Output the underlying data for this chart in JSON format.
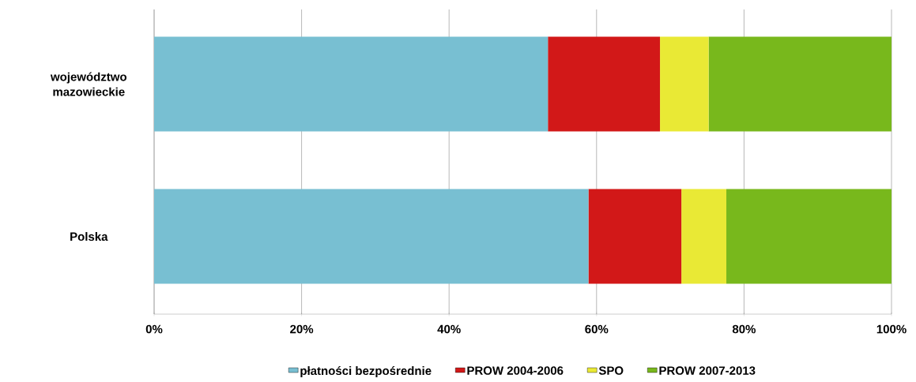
{
  "chart_data": {
    "type": "bar",
    "orientation": "horizontal",
    "stacked": true,
    "categories": [
      "województwo mazowieckie",
      "Polska"
    ],
    "series": [
      {
        "name": "płatności bezpośrednie",
        "color": "#78bfd2",
        "values": [
          53.4,
          58.9
        ]
      },
      {
        "name": "PROW 2004-2006",
        "color": "#d21818",
        "values": [
          15.2,
          12.6
        ]
      },
      {
        "name": "SPO",
        "color": "#e9e935",
        "values": [
          6.6,
          6.1
        ]
      },
      {
        "name": "PROW 2007-2013",
        "color": "#78b81c",
        "values": [
          24.8,
          22.4
        ]
      }
    ],
    "xlim": [
      0,
      100
    ],
    "xticks": [
      {
        "value": 0,
        "label": "0%"
      },
      {
        "value": 20,
        "label": "20%"
      },
      {
        "value": 40,
        "label": "40%"
      },
      {
        "value": 60,
        "label": "60%"
      },
      {
        "value": 80,
        "label": "80%"
      },
      {
        "value": 100,
        "label": "100%"
      }
    ],
    "grid": "x",
    "legend": "bottom"
  }
}
